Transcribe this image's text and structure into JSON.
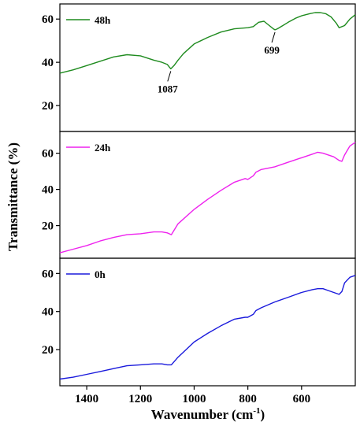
{
  "chart_data": {
    "type": "line",
    "xlabel": "Wavenumber (cm",
    "xlabel_sup": "-1",
    "xlabel_close": ")",
    "ylabel": "Transmittance (%)",
    "xlim": [
      1500,
      400
    ],
    "x_reversed": true,
    "x_ticks": [
      1400,
      1200,
      1000,
      800,
      600
    ],
    "legend_position": "top-left",
    "grid": false,
    "panels": [
      {
        "name": "48h",
        "color": "#1f8b1f",
        "ylim": [
          8,
          67
        ],
        "y_ticks": [
          20,
          40,
          60
        ],
        "x": [
          1500,
          1450,
          1400,
          1350,
          1300,
          1250,
          1200,
          1150,
          1120,
          1100,
          1087,
          1075,
          1060,
          1040,
          1000,
          950,
          900,
          850,
          800,
          780,
          760,
          740,
          720,
          705,
          699,
          690,
          670,
          650,
          620,
          600,
          570,
          550,
          530,
          510,
          490,
          470,
          460,
          440,
          420,
          400
        ],
        "y": [
          35,
          36.5,
          38.5,
          40.5,
          42.5,
          43.5,
          43,
          41,
          40,
          39,
          37,
          38.5,
          41,
          44,
          48.5,
          51.5,
          54,
          55.5,
          56,
          56.5,
          58.5,
          59,
          57,
          55.5,
          55,
          55.5,
          57,
          58.5,
          60.5,
          61.5,
          62.5,
          63,
          63,
          62.5,
          61,
          58,
          56,
          57,
          60,
          62
        ],
        "annotations": [
          {
            "x": 1087,
            "y": 37,
            "label": "1087"
          },
          {
            "x": 699,
            "y": 55,
            "label": "699"
          }
        ]
      },
      {
        "name": "24h",
        "color": "#ee22ee",
        "ylim": [
          2,
          72
        ],
        "y_ticks": [
          20,
          40,
          60
        ],
        "x": [
          1500,
          1450,
          1400,
          1350,
          1300,
          1250,
          1200,
          1150,
          1120,
          1100,
          1085,
          1060,
          1000,
          950,
          900,
          850,
          810,
          800,
          780,
          770,
          750,
          700,
          650,
          600,
          560,
          540,
          520,
          500,
          480,
          460,
          450,
          440,
          420,
          400
        ],
        "y": [
          5,
          7,
          9,
          11.5,
          13.5,
          15,
          15.5,
          16.5,
          16.5,
          16,
          15,
          21,
          29,
          34.5,
          39.5,
          44,
          46,
          45.5,
          47.5,
          49.5,
          51,
          52.5,
          55,
          57.5,
          59.5,
          60.5,
          60,
          59,
          58,
          56,
          55.5,
          59,
          64,
          66
        ]
      },
      {
        "name": "0h",
        "color": "#1a1adc",
        "ylim": [
          1,
          68
        ],
        "y_ticks": [
          20,
          40,
          60
        ],
        "x": [
          1500,
          1450,
          1400,
          1350,
          1300,
          1250,
          1200,
          1150,
          1120,
          1100,
          1085,
          1060,
          1000,
          950,
          900,
          850,
          810,
          800,
          780,
          770,
          750,
          700,
          650,
          600,
          560,
          540,
          520,
          500,
          480,
          460,
          450,
          440,
          420,
          400
        ],
        "y": [
          4.5,
          5.5,
          7,
          8.5,
          10,
          11.5,
          12,
          12.5,
          12.5,
          12,
          12,
          16,
          24,
          28.5,
          32.5,
          36,
          37,
          37,
          38.5,
          40.5,
          42,
          45,
          47.5,
          50,
          51.5,
          52,
          52,
          51,
          50,
          49,
          50.5,
          55,
          58,
          59
        ]
      }
    ]
  }
}
